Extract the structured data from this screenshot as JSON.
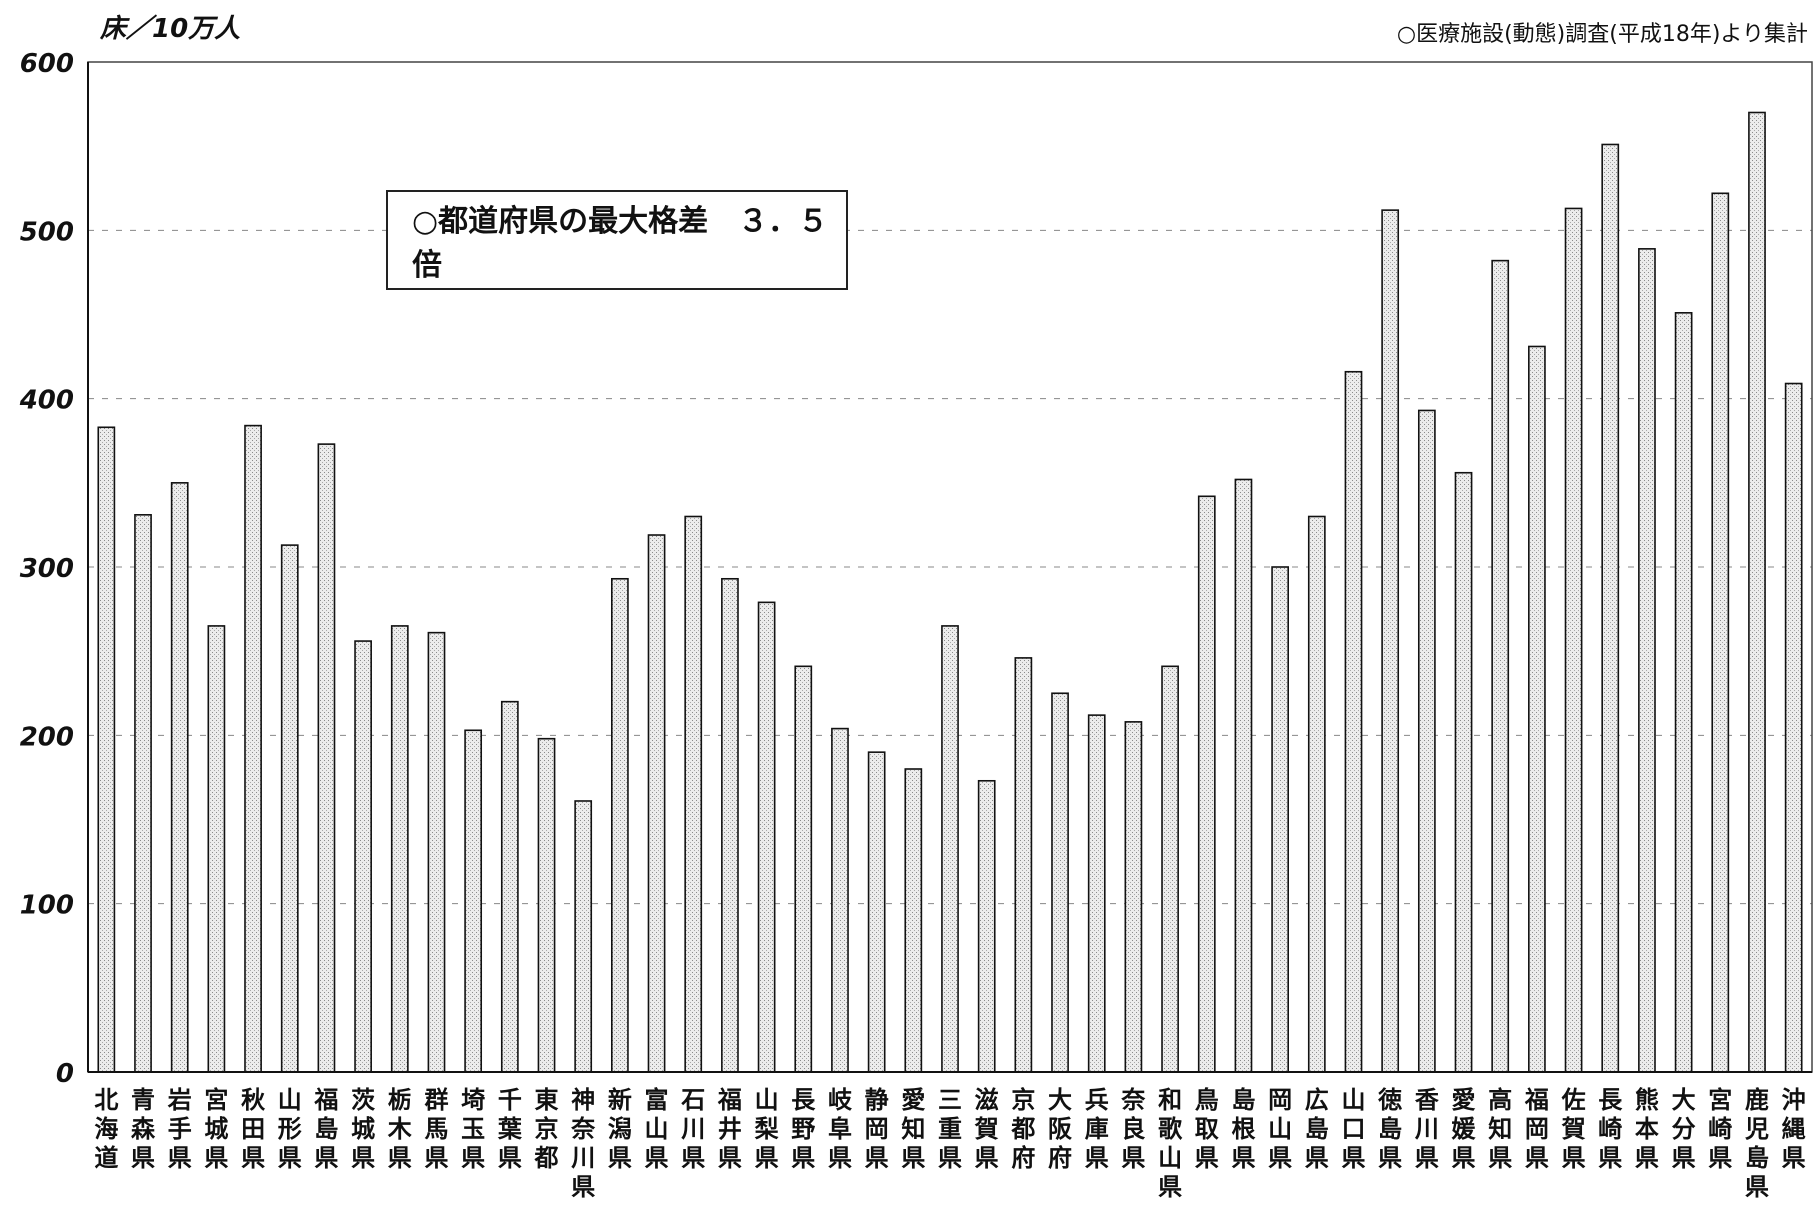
{
  "chart_data": {
    "type": "bar",
    "unit_label": "床／10万人",
    "source_note": "○医療施設(動態)調査(平成18年)より集計",
    "annotation": "○都道府県の最大格差　３．５倍",
    "ylim": [
      0,
      600
    ],
    "yticks": [
      "0",
      "100",
      "200",
      "300",
      "400",
      "500",
      "600"
    ],
    "grid": "dashed horizontal",
    "bar_style": "light gray stippled with dark outline",
    "categories": [
      "北海道",
      "青森県",
      "岩手県",
      "宮城県",
      "秋田県",
      "山形県",
      "福島県",
      "茨城県",
      "栃木県",
      "群馬県",
      "埼玉県",
      "千葉県",
      "東京都",
      "神奈川県",
      "新潟県",
      "富山県",
      "石川県",
      "福井県",
      "山梨県",
      "長野県",
      "岐阜県",
      "静岡県",
      "愛知県",
      "三重県",
      "滋賀県",
      "京都府",
      "大阪府",
      "兵庫県",
      "奈良県",
      "和歌山県",
      "鳥取県",
      "島根県",
      "岡山県",
      "広島県",
      "山口県",
      "徳島県",
      "香川県",
      "愛媛県",
      "高知県",
      "福岡県",
      "佐賀県",
      "長崎県",
      "熊本県",
      "大分県",
      "宮崎県",
      "鹿児島県",
      "沖縄県"
    ],
    "values": [
      383,
      331,
      350,
      265,
      384,
      313,
      373,
      256,
      265,
      261,
      203,
      220,
      198,
      161,
      293,
      319,
      330,
      293,
      279,
      241,
      204,
      190,
      180,
      265,
      173,
      246,
      225,
      212,
      208,
      241,
      342,
      352,
      300,
      330,
      416,
      512,
      393,
      356,
      482,
      431,
      513,
      551,
      489,
      451,
      522,
      570,
      409
    ]
  }
}
